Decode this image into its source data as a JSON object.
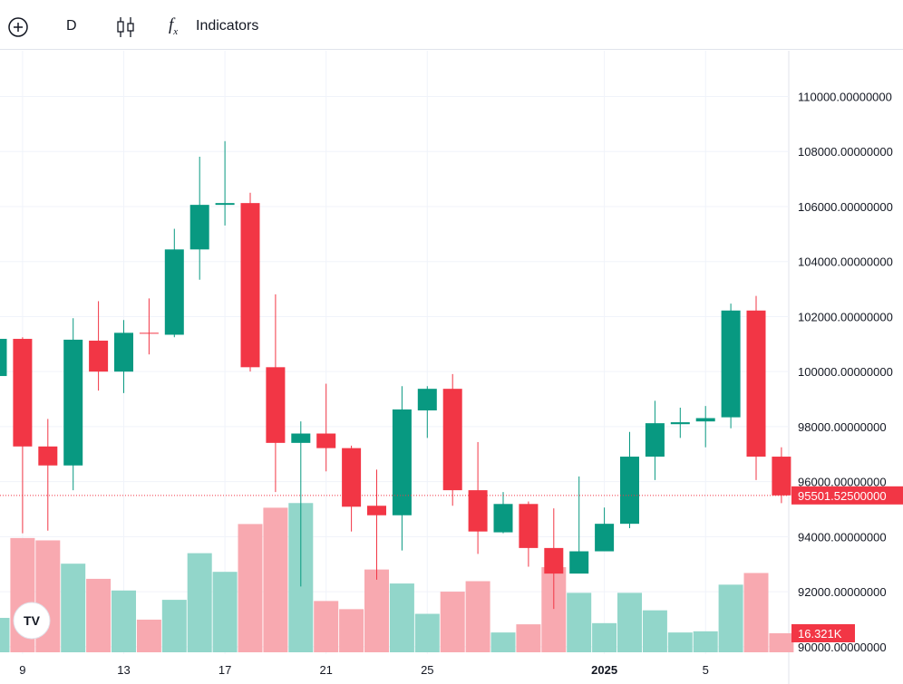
{
  "toolbar": {
    "interval": "D",
    "indicators": "Indicators"
  },
  "chart_data": {
    "type": "candlestick",
    "categories": [
      null,
      "9",
      null,
      null,
      null,
      "13",
      null,
      null,
      null,
      "17",
      null,
      null,
      null,
      "21",
      null,
      null,
      null,
      "25",
      null,
      null,
      null,
      null,
      null,
      null,
      "2025",
      null,
      null,
      null,
      "5",
      null,
      null,
      null
    ],
    "open": [
      99840,
      101190,
      97280,
      96590,
      101125,
      100000,
      101410,
      101340,
      104440,
      106060,
      106125,
      100160,
      97410,
      97750,
      97220,
      95125,
      94780,
      98590,
      99375,
      95690,
      94160,
      95190,
      93590,
      92660,
      93470,
      94470,
      96910,
      98090,
      98190,
      98340,
      102220,
      96910
    ],
    "high": [
      101300,
      101250,
      98280,
      101940,
      102560,
      101875,
      102660,
      105190,
      107810,
      108375,
      106500,
      102810,
      98190,
      99560,
      97310,
      96440,
      99470,
      99470,
      99910,
      97440,
      95625,
      95280,
      95030,
      96190,
      95060,
      97810,
      98940,
      98690,
      98750,
      102470,
      102750,
      97250
    ],
    "low": [
      99700,
      94125,
      94220,
      95690,
      99310,
      99220,
      100625,
      101250,
      103340,
      105310,
      100000,
      95625,
      92190,
      96375,
      94190,
      92440,
      93500,
      97590,
      95125,
      93375,
      94125,
      92910,
      91375,
      92750,
      93660,
      94310,
      96060,
      97590,
      97250,
      97940,
      96060,
      95220
    ],
    "close": [
      101190,
      97280,
      96590,
      101160,
      100000,
      101410,
      101400,
      104440,
      106060,
      106125,
      100160,
      97410,
      97750,
      97220,
      95090,
      94780,
      98625,
      99375,
      95690,
      94190,
      95190,
      93590,
      92660,
      93470,
      94470,
      96910,
      98125,
      98160,
      98310,
      102220,
      96910,
      95501.525
    ],
    "volume": [
      29.5,
      98,
      96,
      76,
      63,
      53,
      28,
      45,
      85,
      69,
      110,
      124,
      128,
      44,
      37,
      71,
      59,
      33,
      52,
      61,
      17,
      24,
      73,
      51,
      25,
      51,
      36,
      17,
      18,
      58,
      68,
      16.321
    ],
    "up_color": "#089981",
    "down_color": "#f23645",
    "up_volume_color": "#92d6ca",
    "down_volume_color": "#f8a9b0",
    "ylim": [
      89800,
      111200
    ],
    "yticks": [
      {
        "value": 90000,
        "label": "90000.00000000"
      },
      {
        "value": 92000,
        "label": "92000.00000000"
      },
      {
        "value": 94000,
        "label": "94000.00000000"
      },
      {
        "value": 96000,
        "label": "96000.00000000"
      },
      {
        "value": 98000,
        "label": "98000.00000000"
      },
      {
        "value": 100000,
        "label": "100000.00000000"
      },
      {
        "value": 102000,
        "label": "102000.00000000"
      },
      {
        "value": 104000,
        "label": "104000.00000000"
      },
      {
        "value": 106000,
        "label": "106000.00000000"
      },
      {
        "value": 108000,
        "label": "108000.00000000"
      },
      {
        "value": 110000,
        "label": "110000.00000000"
      }
    ],
    "last_price": {
      "value": 95501.525,
      "label": "95501.52500000"
    },
    "last_volume": {
      "value": 16.321,
      "label": "16.321K"
    },
    "grid": true
  }
}
